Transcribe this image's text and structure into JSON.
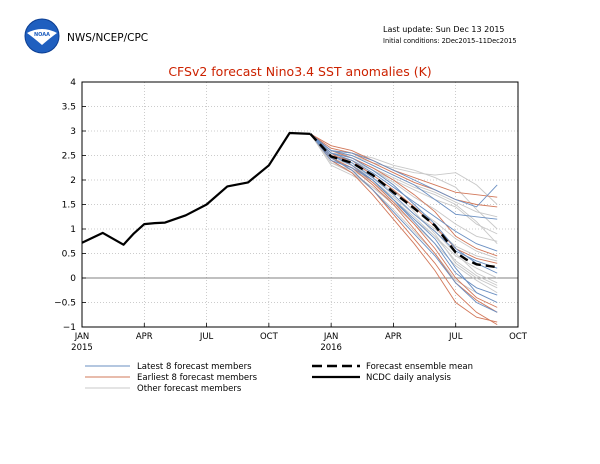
{
  "header": {
    "agency": "NWS/NCEP/CPC",
    "logo_text": "NOAA",
    "last_update": "Last update: Sun Dec 13 2015",
    "initial_conditions": "Initial conditions: 2Dec2015–11Dec2015"
  },
  "colors": {
    "title": "#cc2200",
    "latest": "#6a8fc2",
    "earliest": "#d2785a",
    "other": "#c8c8c8",
    "observed": "#000000",
    "grid": "#9a9a9a",
    "zero_line": "#808080",
    "logo_blue": "#1f5fbf"
  },
  "chart_data": {
    "type": "line",
    "title": "CFSv2 forecast Nino3.4 SST anomalies (K)",
    "xlabel": "",
    "ylabel": "",
    "x_range": [
      0,
      21
    ],
    "ylim": [
      -1,
      4
    ],
    "grid": true,
    "x_ticks": [
      {
        "x": 0,
        "label": "JAN",
        "sub": "2015"
      },
      {
        "x": 3,
        "label": "APR",
        "sub": ""
      },
      {
        "x": 6,
        "label": "JUL",
        "sub": ""
      },
      {
        "x": 9,
        "label": "OCT",
        "sub": ""
      },
      {
        "x": 12,
        "label": "JAN",
        "sub": "2016"
      },
      {
        "x": 15,
        "label": "APR",
        "sub": ""
      },
      {
        "x": 18,
        "label": "JUL",
        "sub": ""
      },
      {
        "x": 21,
        "label": "OCT",
        "sub": ""
      }
    ],
    "y_ticks": [
      -1,
      -0.5,
      0,
      0.5,
      1,
      1.5,
      2,
      2.5,
      3,
      3.5,
      4
    ],
    "y_tick_labels": [
      "−1",
      "−0.5",
      "0",
      "0.5",
      "1",
      "1.5",
      "2",
      "2.5",
      "3",
      "3.5",
      "4"
    ],
    "legend": {
      "placement": "bottom",
      "entries": [
        {
          "label": "Latest 8 forecast members",
          "key": "latest"
        },
        {
          "label": "Earliest 8 forecast members",
          "key": "earliest"
        },
        {
          "label": "Other forecast members",
          "key": "other"
        },
        {
          "label": "Forecast ensemble mean",
          "key": "mean"
        },
        {
          "label": "NCDC daily analysis",
          "key": "observed"
        }
      ]
    },
    "observed": {
      "name": "NCDC daily analysis",
      "x": [
        0,
        1,
        2,
        2.5,
        3,
        3.5,
        4,
        5,
        6,
        7,
        8,
        9,
        10,
        11
      ],
      "y": [
        0.72,
        0.92,
        0.68,
        0.91,
        1.1,
        1.12,
        1.13,
        1.28,
        1.5,
        1.87,
        1.95,
        2.3,
        2.96,
        2.94
      ]
    },
    "forecast_mean": {
      "name": "Forecast ensemble mean",
      "x": [
        11,
        12,
        13,
        14,
        15,
        16,
        17,
        18,
        18.5,
        19,
        20
      ],
      "y": [
        2.94,
        2.48,
        2.35,
        2.1,
        1.75,
        1.42,
        1.07,
        0.52,
        0.38,
        0.28,
        0.22
      ]
    },
    "members": {
      "x": [
        11,
        12,
        13,
        14,
        15,
        16,
        17,
        18,
        19,
        20
      ],
      "latest": [
        [
          2.94,
          2.6,
          2.5,
          2.3,
          2.1,
          1.9,
          1.6,
          1.3,
          1.25,
          1.2
        ],
        [
          2.94,
          2.5,
          2.3,
          2.0,
          1.6,
          1.2,
          0.8,
          0.2,
          -0.3,
          -0.5
        ],
        [
          2.94,
          2.55,
          2.45,
          2.2,
          1.9,
          1.5,
          1.1,
          0.6,
          0.3,
          0.1
        ],
        [
          2.94,
          2.45,
          2.2,
          1.8,
          1.35,
          0.9,
          0.45,
          -0.1,
          -0.5,
          -0.7
        ],
        [
          2.94,
          2.6,
          2.55,
          2.4,
          2.2,
          2.0,
          1.8,
          1.6,
          1.45,
          1.9
        ],
        [
          2.94,
          2.5,
          2.35,
          2.05,
          1.7,
          1.3,
          0.95,
          0.55,
          0.35,
          0.2
        ],
        [
          2.94,
          2.4,
          2.25,
          2.0,
          1.6,
          1.15,
          0.7,
          0.1,
          -0.2,
          -0.35
        ],
        [
          2.94,
          2.55,
          2.4,
          2.15,
          1.85,
          1.55,
          1.25,
          0.95,
          0.7,
          0.55
        ]
      ],
      "earliest": [
        [
          2.94,
          2.7,
          2.6,
          2.4,
          2.2,
          2.05,
          1.9,
          1.75,
          1.7,
          1.65
        ],
        [
          2.94,
          2.45,
          2.2,
          1.8,
          1.3,
          0.8,
          0.3,
          -0.3,
          -0.7,
          -0.95
        ],
        [
          2.94,
          2.55,
          2.3,
          1.95,
          1.55,
          1.1,
          0.6,
          0.0,
          -0.4,
          -0.6
        ],
        [
          2.94,
          2.65,
          2.55,
          2.35,
          2.15,
          1.95,
          1.8,
          1.6,
          1.5,
          1.45
        ],
        [
          2.94,
          2.4,
          2.15,
          1.7,
          1.2,
          0.7,
          0.15,
          -0.5,
          -0.8,
          -0.9
        ],
        [
          2.94,
          2.5,
          2.4,
          2.1,
          1.8,
          1.45,
          1.05,
          0.6,
          0.4,
          0.3
        ],
        [
          2.94,
          2.6,
          2.45,
          2.25,
          2.0,
          1.7,
          1.35,
          0.85,
          0.6,
          0.45
        ],
        [
          2.94,
          2.45,
          2.25,
          1.9,
          1.5,
          1.0,
          0.5,
          -0.1,
          -0.45,
          -0.7
        ]
      ],
      "other": [
        [
          2.94,
          2.55,
          2.5,
          2.35,
          2.25,
          2.15,
          2.1,
          2.15,
          1.9,
          1.5
        ],
        [
          2.94,
          2.5,
          2.4,
          2.2,
          2.0,
          1.8,
          1.6,
          1.45,
          1.1,
          0.9
        ],
        [
          2.94,
          2.35,
          2.2,
          1.95,
          1.65,
          1.3,
          0.95,
          0.5,
          0.1,
          -0.1
        ],
        [
          2.94,
          2.6,
          2.5,
          2.3,
          2.1,
          1.9,
          1.75,
          1.55,
          1.35,
          1.25
        ],
        [
          2.94,
          2.45,
          2.3,
          2.05,
          1.75,
          1.45,
          1.15,
          0.8,
          0.55,
          0.4
        ],
        [
          2.94,
          2.5,
          2.35,
          2.1,
          1.8,
          1.35,
          0.9,
          0.3,
          0.0,
          -0.2
        ],
        [
          2.94,
          2.4,
          2.15,
          1.8,
          1.4,
          0.95,
          0.5,
          -0.05,
          -0.3,
          -0.5
        ],
        [
          2.94,
          2.55,
          2.45,
          2.25,
          2.05,
          1.85,
          1.7,
          1.5,
          1.15,
          0.7
        ],
        [
          2.94,
          2.3,
          2.1,
          1.85,
          1.55,
          1.2,
          0.85,
          0.45,
          0.2,
          0.0
        ],
        [
          2.94,
          2.6,
          2.55,
          2.45,
          2.3,
          2.2,
          2.05,
          1.85,
          1.4,
          1.0
        ],
        [
          2.94,
          2.45,
          2.25,
          1.95,
          1.6,
          1.25,
          0.85,
          0.35,
          0.05,
          -0.15
        ],
        [
          2.94,
          2.5,
          2.3,
          2.0,
          1.65,
          1.3,
          1.0,
          0.65,
          0.45,
          0.35
        ],
        [
          2.94,
          2.35,
          2.15,
          1.85,
          1.5,
          1.1,
          0.7,
          0.25,
          -0.05,
          -0.3
        ],
        [
          2.94,
          2.55,
          2.4,
          2.2,
          1.95,
          1.65,
          1.4,
          1.1,
          0.85,
          0.75
        ]
      ]
    }
  }
}
